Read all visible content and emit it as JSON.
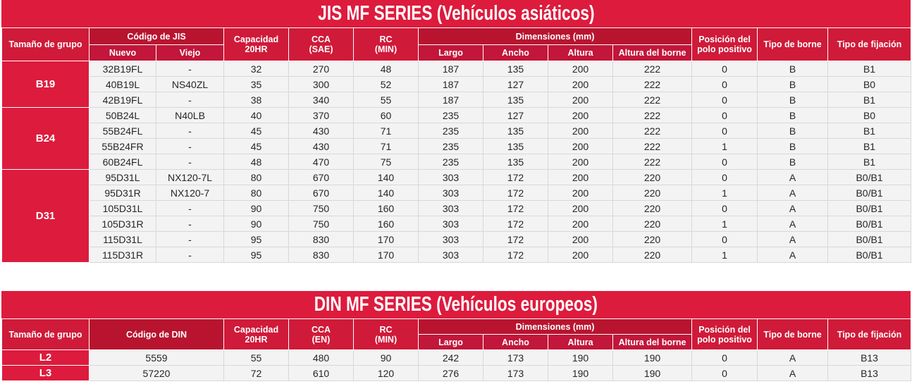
{
  "jis": {
    "title": "JIS MF SERIES (Vehículos asiáticos)",
    "headers": {
      "group": "Tamaño de grupo",
      "code": "Código de JIS",
      "code_new": "Nuevo",
      "code_old": "Viejo",
      "capacity_l1": "Capacidad",
      "capacity_l2": "20HR",
      "cca_l1": "CCA",
      "cca_l2": "(SAE)",
      "rc_l1": "RC",
      "rc_l2": "(MIN)",
      "dimensions": "Dimensiones (mm)",
      "length": "Largo",
      "width": "Ancho",
      "height": "Altura",
      "terminal_height": "Altura del borne",
      "pos_l1": "Posición del",
      "pos_l2": "polo positivo",
      "terminal_type": "Tipo de borne",
      "fixing_type": "Tipo de fijación"
    },
    "groups": [
      {
        "name": "B19",
        "rows": [
          [
            "32B19FL",
            "-",
            "32",
            "270",
            "48",
            "187",
            "135",
            "200",
            "222",
            "0",
            "B",
            "B1"
          ],
          [
            "40B19L",
            "NS40ZL",
            "35",
            "300",
            "52",
            "187",
            "127",
            "200",
            "222",
            "0",
            "B",
            "B0"
          ],
          [
            "42B19FL",
            "-",
            "38",
            "340",
            "55",
            "187",
            "135",
            "200",
            "222",
            "0",
            "B",
            "B1"
          ]
        ]
      },
      {
        "name": "B24",
        "rows": [
          [
            "50B24L",
            "N40LB",
            "40",
            "370",
            "60",
            "235",
            "127",
            "200",
            "222",
            "0",
            "B",
            "B0"
          ],
          [
            "55B24FL",
            "-",
            "45",
            "430",
            "71",
            "235",
            "135",
            "200",
            "222",
            "0",
            "B",
            "B1"
          ],
          [
            "55B24FR",
            "-",
            "45",
            "430",
            "71",
            "235",
            "135",
            "200",
            "222",
            "1",
            "B",
            "B1"
          ],
          [
            "60B24FL",
            "-",
            "48",
            "470",
            "75",
            "235",
            "135",
            "200",
            "222",
            "0",
            "B",
            "B1"
          ]
        ]
      },
      {
        "name": "D31",
        "rows": [
          [
            "95D31L",
            "NX120-7L",
            "80",
            "670",
            "140",
            "303",
            "172",
            "200",
            "220",
            "0",
            "A",
            "B0/B1"
          ],
          [
            "95D31R",
            "NX120-7",
            "80",
            "670",
            "140",
            "303",
            "172",
            "200",
            "220",
            "1",
            "A",
            "B0/B1"
          ],
          [
            "105D31L",
            "-",
            "90",
            "750",
            "160",
            "303",
            "172",
            "200",
            "220",
            "0",
            "A",
            "B0/B1"
          ],
          [
            "105D31R",
            "-",
            "90",
            "750",
            "160",
            "303",
            "172",
            "200",
            "220",
            "1",
            "A",
            "B0/B1"
          ],
          [
            "115D31L",
            "-",
            "95",
            "830",
            "170",
            "303",
            "172",
            "200",
            "220",
            "0",
            "A",
            "B0/B1"
          ],
          [
            "115D31R",
            "-",
            "95",
            "830",
            "170",
            "303",
            "172",
            "200",
            "220",
            "1",
            "A",
            "B0/B1"
          ]
        ]
      }
    ]
  },
  "din": {
    "title": "DIN MF SERIES (Vehículos europeos)",
    "headers": {
      "group": "Tamaño de grupo",
      "code": "Código de DIN",
      "capacity_l1": "Capacidad",
      "capacity_l2": "20HR",
      "cca_l1": "CCA",
      "cca_l2": "(EN)",
      "rc_l1": "RC",
      "rc_l2": "(MIN)",
      "dimensions": "Dimensiones (mm)",
      "length": "Largo",
      "width": "Ancho",
      "height": "Altura",
      "terminal_height": "Altura del borne",
      "pos_l1": "Posición del",
      "pos_l2": "polo positivo",
      "terminal_type": "Tipo de borne",
      "fixing_type": "Tipo de fijación"
    },
    "rows": [
      {
        "group": "L2",
        "cells": [
          "5559",
          "55",
          "480",
          "90",
          "242",
          "173",
          "190",
          "190",
          "0",
          "A",
          "B13"
        ]
      },
      {
        "group": "L3",
        "cells": [
          "57220",
          "72",
          "610",
          "120",
          "276",
          "173",
          "190",
          "190",
          "0",
          "A",
          "B13"
        ]
      }
    ]
  }
}
